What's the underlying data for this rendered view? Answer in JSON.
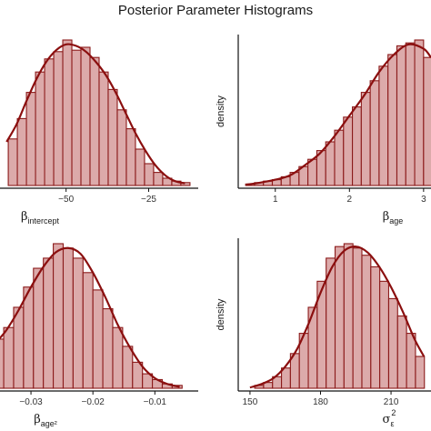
{
  "figure": {
    "title": "Posterior Parameter Histograms"
  },
  "colors": {
    "bar_fill": "#dcaaaa",
    "bar_stroke": "#8b1a1a",
    "curve": "#8b0f0f",
    "axis": "#111111",
    "background": "#ffffff"
  },
  "chart_data": [
    {
      "id": "intercept",
      "type": "bar",
      "subtype": "histogram_with_density",
      "xlabel": {
        "symbol": "β",
        "subscript": "intercept"
      },
      "ylabel": "",
      "xlim": [
        -70,
        -10
      ],
      "ylim": [
        0,
        1
      ],
      "xticks": [
        -50,
        -25
      ],
      "xtick_labels": [
        "−50",
        "−25"
      ],
      "bin_width": 2.75,
      "bins_left_edges": [
        -67.5,
        -64.75,
        -62.0,
        -59.25,
        -56.5,
        -53.75,
        -51.0,
        -48.25,
        -45.5,
        -42.75,
        -40.0,
        -37.25,
        -34.5,
        -31.75,
        -29.0,
        -26.25,
        -23.5,
        -20.75,
        -18.0,
        -15.25
      ],
      "values": [
        0.32,
        0.46,
        0.64,
        0.78,
        0.87,
        0.92,
        1.0,
        0.93,
        0.95,
        0.88,
        0.78,
        0.66,
        0.52,
        0.39,
        0.25,
        0.15,
        0.09,
        0.05,
        0.03,
        0.02
      ],
      "density_x": [
        -68,
        -65,
        -62,
        -59,
        -56,
        -53,
        -50,
        -47,
        -44,
        -41,
        -38,
        -35,
        -32,
        -29,
        -26,
        -23,
        -20,
        -17,
        -14
      ],
      "density_y": [
        0.3,
        0.42,
        0.58,
        0.73,
        0.85,
        0.93,
        0.97,
        0.96,
        0.92,
        0.85,
        0.76,
        0.64,
        0.5,
        0.36,
        0.24,
        0.14,
        0.07,
        0.03,
        0.015
      ]
    },
    {
      "id": "age",
      "type": "bar",
      "subtype": "histogram_with_density",
      "xlabel": {
        "symbol": "β",
        "subscript": "age"
      },
      "ylabel": "density",
      "xlim": [
        0.5,
        3.1
      ],
      "ylim": [
        0,
        1
      ],
      "xticks": [
        1,
        2,
        3
      ],
      "xtick_labels": [
        "1",
        "2",
        "3"
      ],
      "bin_width": 0.12,
      "bins_left_edges": [
        0.6,
        0.72,
        0.84,
        0.96,
        1.08,
        1.2,
        1.32,
        1.44,
        1.56,
        1.68,
        1.8,
        1.92,
        2.04,
        2.16,
        2.28,
        2.4,
        2.52,
        2.64,
        2.76,
        2.88,
        3.0
      ],
      "values": [
        0.01,
        0.02,
        0.03,
        0.04,
        0.06,
        0.09,
        0.13,
        0.18,
        0.24,
        0.3,
        0.38,
        0.47,
        0.54,
        0.64,
        0.72,
        0.82,
        0.9,
        0.96,
        0.98,
        1.0,
        0.88
      ],
      "density_x": [
        0.6,
        0.8,
        1.0,
        1.2,
        1.4,
        1.6,
        1.8,
        2.0,
        2.2,
        2.4,
        2.6,
        2.8,
        3.0,
        3.1
      ],
      "density_y": [
        0.005,
        0.02,
        0.04,
        0.07,
        0.14,
        0.22,
        0.34,
        0.48,
        0.62,
        0.78,
        0.9,
        0.97,
        0.94,
        0.88
      ]
    },
    {
      "id": "age2",
      "type": "bar",
      "subtype": "histogram_with_density",
      "xlabel": {
        "symbol": "β",
        "subscript": "age²"
      },
      "ylabel": "",
      "xlim": [
        -0.035,
        -0.003
      ],
      "ylim": [
        0,
        1
      ],
      "xticks": [
        -0.03,
        -0.02,
        -0.01
      ],
      "xtick_labels": [
        "−0.03",
        "−0.02",
        "−0.01"
      ],
      "bin_width": 0.0016,
      "bins_left_edges": [
        -0.036,
        -0.0344,
        -0.0328,
        -0.0312,
        -0.0296,
        -0.028,
        -0.0264,
        -0.0248,
        -0.0232,
        -0.0216,
        -0.02,
        -0.0184,
        -0.0168,
        -0.0152,
        -0.0136,
        -0.012,
        -0.0104,
        -0.0088,
        -0.0072
      ],
      "values": [
        0.34,
        0.42,
        0.56,
        0.7,
        0.83,
        0.9,
        1.0,
        0.97,
        0.9,
        0.8,
        0.68,
        0.55,
        0.42,
        0.29,
        0.18,
        0.1,
        0.06,
        0.03,
        0.02
      ],
      "density_x": [
        -0.036,
        -0.034,
        -0.032,
        -0.03,
        -0.028,
        -0.026,
        -0.024,
        -0.022,
        -0.02,
        -0.018,
        -0.016,
        -0.014,
        -0.012,
        -0.01,
        -0.008,
        -0.006
      ],
      "density_y": [
        0.3,
        0.4,
        0.54,
        0.7,
        0.84,
        0.94,
        0.97,
        0.93,
        0.8,
        0.63,
        0.44,
        0.28,
        0.15,
        0.07,
        0.03,
        0.01
      ]
    },
    {
      "id": "sigma",
      "type": "bar",
      "subtype": "histogram_with_density",
      "xlabel": {
        "symbol": "σ",
        "subscript": "ε",
        "superscript": "2"
      },
      "ylabel": "density",
      "xlim": [
        145,
        227
      ],
      "ylim": [
        0,
        1
      ],
      "xticks": [
        150,
        180,
        210
      ],
      "xtick_labels": [
        "150",
        "180",
        "210"
      ],
      "bin_width": 3.8,
      "bins_left_edges": [
        152,
        155.8,
        159.6,
        163.4,
        167.2,
        171,
        174.8,
        178.6,
        182.4,
        186.2,
        190,
        193.8,
        197.6,
        201.4,
        205.2,
        209,
        212.8,
        216.6,
        220.4
      ],
      "values": [
        0.02,
        0.04,
        0.08,
        0.14,
        0.24,
        0.38,
        0.56,
        0.74,
        0.9,
        0.98,
        1.0,
        0.97,
        0.92,
        0.84,
        0.74,
        0.62,
        0.5,
        0.38,
        0.22
      ],
      "density_x": [
        150,
        155,
        160,
        165,
        170,
        175,
        180,
        185,
        190,
        195,
        200,
        205,
        210,
        215,
        220,
        224
      ],
      "density_y": [
        0.005,
        0.03,
        0.07,
        0.15,
        0.27,
        0.45,
        0.66,
        0.84,
        0.95,
        0.98,
        0.94,
        0.84,
        0.7,
        0.53,
        0.34,
        0.22
      ]
    }
  ]
}
